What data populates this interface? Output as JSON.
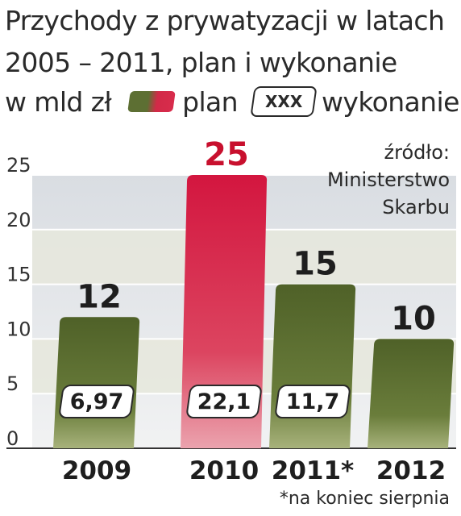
{
  "title_lines": [
    "Przychody z prywatyzacji w latach",
    "2005 – 2011, plan i wykonanie"
  ],
  "legend": {
    "unit": "w mld zł",
    "plan_label": "plan",
    "box_sample": "XXX",
    "done_label": "wykonanie"
  },
  "source_lines": [
    "źródło:",
    "Ministerstwo",
    "Skarbu"
  ],
  "footnote": "*na koniec sierpnia",
  "colors": {
    "plan": "#5d6f33",
    "plan_highlight": "#d82c4c",
    "highlight_label": "#c8102e"
  },
  "chart_data": {
    "type": "bar",
    "categories": [
      "2009",
      "2010",
      "2011*",
      "2012"
    ],
    "series": [
      {
        "name": "plan",
        "values": [
          12,
          25,
          15,
          10
        ]
      },
      {
        "name": "wykonanie",
        "values": [
          6.97,
          22.1,
          11.7,
          null
        ]
      }
    ],
    "plan_labels": [
      "12",
      "25",
      "15",
      "10"
    ],
    "done_labels": [
      "6,97",
      "22,1",
      "11,7",
      ""
    ],
    "highlight_category": "2010",
    "ylim": [
      0,
      25
    ],
    "yticks": [
      0,
      5,
      10,
      15,
      20,
      25
    ],
    "grid": true
  }
}
